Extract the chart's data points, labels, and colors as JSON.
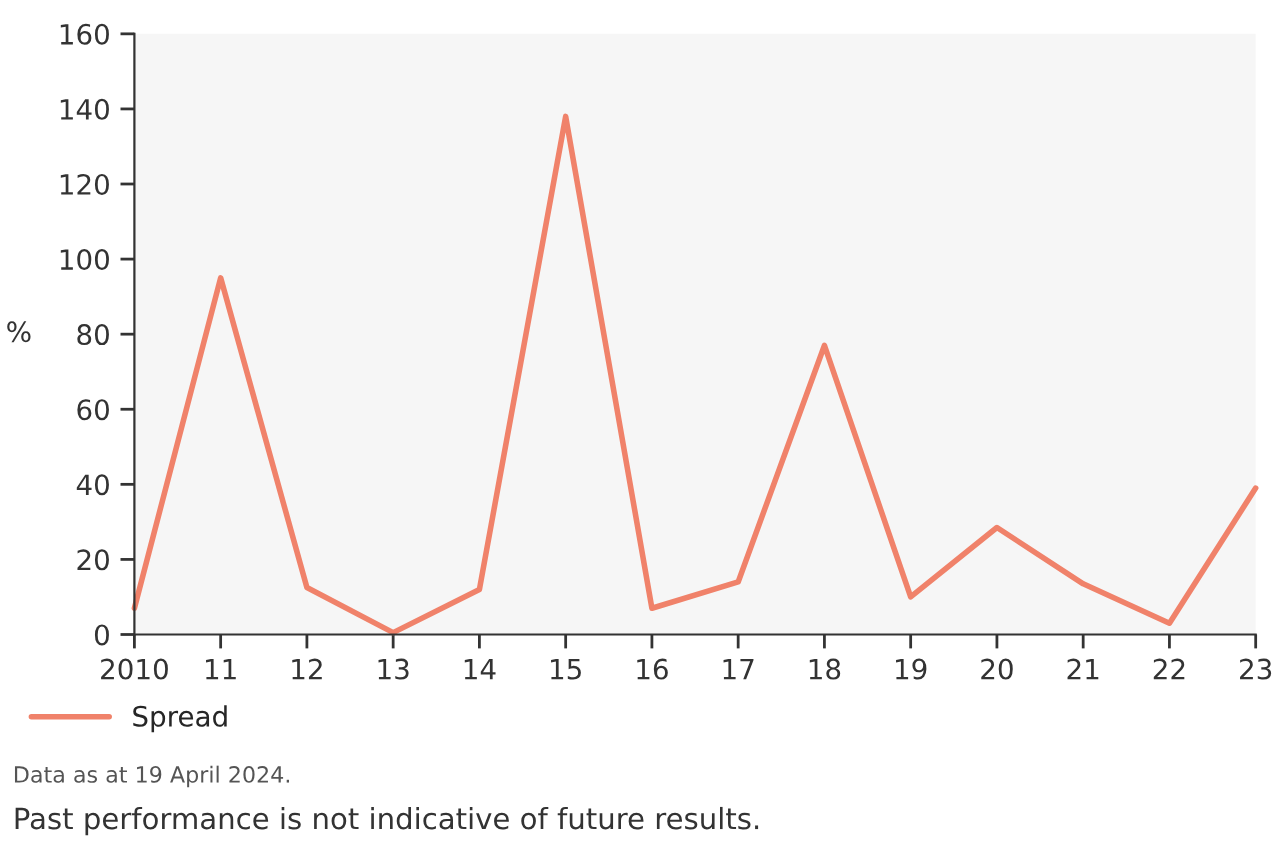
{
  "chart_data": {
    "type": "line",
    "categories": [
      "2010",
      "11",
      "12",
      "13",
      "14",
      "15",
      "16",
      "17",
      "18",
      "19",
      "20",
      "21",
      "22",
      "23"
    ],
    "series": [
      {
        "name": "Spread",
        "color": "#f0826a",
        "values": [
          7,
          95,
          12.5,
          0.5,
          12,
          138,
          7,
          14,
          77,
          10,
          28.5,
          13.5,
          3,
          39
        ]
      }
    ],
    "ylabel": "%",
    "ylim": [
      0,
      160
    ],
    "yticks": [
      0,
      20,
      40,
      60,
      80,
      100,
      120,
      140,
      160
    ],
    "grid": false,
    "legend": "bottom left",
    "marker": "none",
    "line_style": "solid",
    "annotations": [
      "Data as at 19 April 2024.",
      "Past performance is not indicative of future results."
    ]
  }
}
